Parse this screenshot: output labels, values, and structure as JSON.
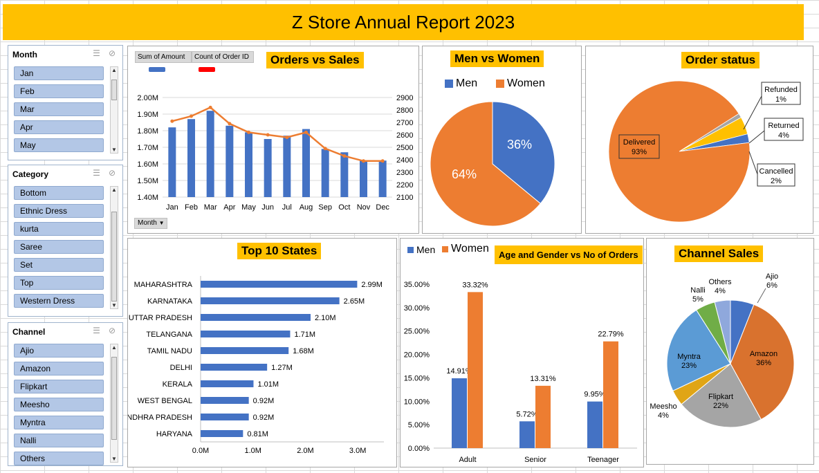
{
  "title": "Z Store Annual Report 2023",
  "slicers": {
    "month": {
      "header": "Month",
      "items": [
        "Jan",
        "Feb",
        "Mar",
        "Apr",
        "May"
      ]
    },
    "category": {
      "header": "Category",
      "items": [
        "Bottom",
        "Ethnic Dress",
        "kurta",
        "Saree",
        "Set",
        "Top",
        "Western Dress"
      ]
    },
    "channel": {
      "header": "Channel",
      "items": [
        "Ajio",
        "Amazon",
        "Flipkart",
        "Meesho",
        "Myntra",
        "Nalli",
        "Others"
      ]
    }
  },
  "orders_vs_sales": {
    "title": "Orders vs  Sales",
    "legend_amount": "Sum of Amount",
    "legend_count": "Count of Order ID",
    "month_button": "Month",
    "colors": {
      "bars": "#4472c4",
      "line": "#ed7d31",
      "count_swatch": "#ff0000"
    }
  },
  "men_vs_women": {
    "title": "Men vs Women",
    "legend": [
      "Men",
      "Women"
    ],
    "labels": [
      "36%",
      "64%"
    ]
  },
  "order_status": {
    "title": "Order status"
  },
  "top_states": {
    "title": "Top 10 States"
  },
  "age_gender": {
    "title": "Age and Gender vs No of  Orders",
    "legend": [
      "Men",
      "Women"
    ]
  },
  "channel_sales": {
    "title": "Channel Sales"
  },
  "chart_data": [
    {
      "id": "orders_vs_sales",
      "type": "bar",
      "categories": [
        "Jan",
        "Feb",
        "Mar",
        "Apr",
        "May",
        "Jun",
        "Jul",
        "Aug",
        "Sep",
        "Oct",
        "Nov",
        "Dec"
      ],
      "series": [
        {
          "name": "Sum of Amount",
          "type": "bar",
          "axis": "left",
          "values": [
            1.82,
            1.87,
            1.92,
            1.83,
            1.79,
            1.75,
            1.77,
            1.81,
            1.69,
            1.67,
            1.62,
            1.62
          ]
        },
        {
          "name": "Count of Order ID",
          "type": "line",
          "axis": "right",
          "values": [
            2710,
            2750,
            2820,
            2690,
            2620,
            2600,
            2580,
            2620,
            2490,
            2430,
            2390,
            2390
          ]
        }
      ],
      "ylim_left": [
        1.4,
        2.0
      ],
      "ylim_right": [
        2100,
        2900
      ],
      "left_ticks": [
        "1.40M",
        "1.50M",
        "1.60M",
        "1.70M",
        "1.80M",
        "1.90M",
        "2.00M"
      ],
      "right_ticks": [
        "2100",
        "2200",
        "2300",
        "2400",
        "2500",
        "2600",
        "2700",
        "2800",
        "2900"
      ],
      "grid": true
    },
    {
      "id": "men_vs_women",
      "type": "pie",
      "labels": [
        "Men",
        "Women"
      ],
      "values": [
        36,
        64
      ],
      "colors": [
        "#4472c4",
        "#ed7d31"
      ]
    },
    {
      "id": "order_status",
      "type": "pie",
      "labels": [
        "Delivered",
        "Refunded",
        "Returned",
        "Cancelled"
      ],
      "values": [
        93,
        1,
        4,
        2
      ],
      "display": [
        "93%",
        "1%",
        "4%",
        "2%"
      ],
      "colors": [
        "#ed7d31",
        "#a5a5a5",
        "#ffc000",
        "#4472c4"
      ]
    },
    {
      "id": "top_states",
      "type": "bar",
      "orientation": "horizontal",
      "categories": [
        "MAHARASHTRA",
        "KARNATAKA",
        "UTTAR PRADESH",
        "TELANGANA",
        "TAMIL NADU",
        "DELHI",
        "KERALA",
        "WEST BENGAL",
        "ANDHRA PRADESH",
        "HARYANA"
      ],
      "values": [
        2.99,
        2.65,
        2.1,
        1.71,
        1.68,
        1.27,
        1.01,
        0.92,
        0.92,
        0.81
      ],
      "labels": [
        "2.99M",
        "2.65M",
        "2.10M",
        "1.71M",
        "1.68M",
        "1.27M",
        "1.01M",
        "0.92M",
        "0.92M",
        "0.81M"
      ],
      "xlim": [
        0,
        3.5
      ],
      "x_ticks": [
        "0.0M",
        "1.0M",
        "2.0M",
        "3.0M"
      ]
    },
    {
      "id": "age_gender",
      "type": "bar",
      "categories": [
        "Adult",
        "Senior",
        "Teenager"
      ],
      "series": [
        {
          "name": "Men",
          "values": [
            14.91,
            5.72,
            9.95
          ],
          "labels": [
            "14.91%",
            "5.72%",
            "9.95%"
          ]
        },
        {
          "name": "Women",
          "values": [
            33.32,
            13.31,
            22.79
          ],
          "labels": [
            "33.32%",
            "13.31%",
            "22.79%"
          ]
        }
      ],
      "ylim": [
        0,
        35
      ],
      "y_ticks": [
        "0.00%",
        "5.00%",
        "10.00%",
        "15.00%",
        "20.00%",
        "25.00%",
        "30.00%",
        "35.00%"
      ]
    },
    {
      "id": "channel_sales",
      "type": "pie",
      "labels": [
        "Ajio",
        "Amazon",
        "Flipkart",
        "Meesho",
        "Myntra",
        "Nalli",
        "Others"
      ],
      "values": [
        6,
        36,
        22,
        4,
        23,
        5,
        4
      ],
      "display": [
        "6%",
        "36%",
        "22%",
        "4%",
        "23%",
        "5%",
        "4%"
      ],
      "colors": [
        "#4472c4",
        "#d9722e",
        "#a5a5a5",
        "#e0a516",
        "#5b9bd5",
        "#70ad47",
        "#8fa8dc"
      ]
    }
  ]
}
